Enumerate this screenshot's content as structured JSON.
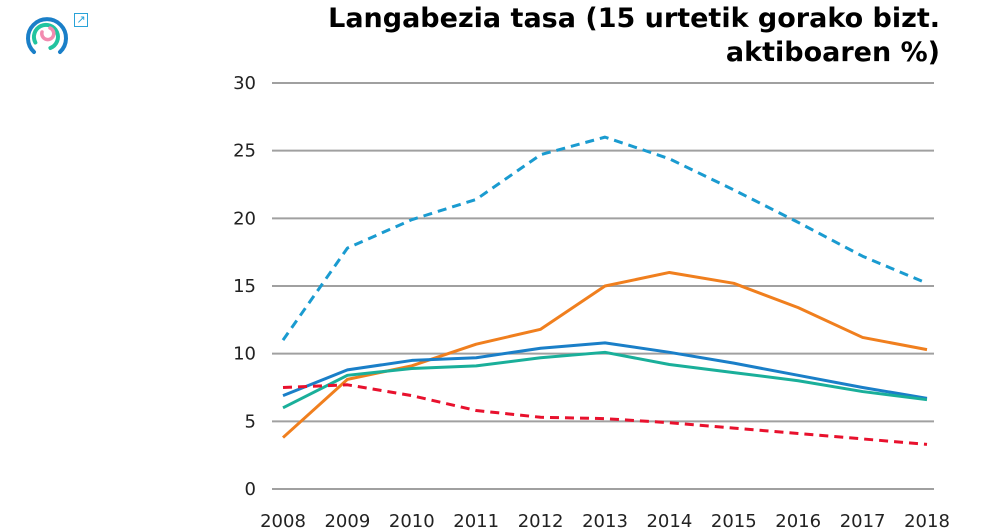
{
  "header": {
    "logo": "Eustat logo",
    "external_link_icon": "external-link-icon"
  },
  "chart_data": {
    "type": "line",
    "title": "Langabezia tasa (15 urtetik gorako bizt. aktiboaren %)",
    "title_lines": [
      "Langabezia tasa (15 urtetik gorako bizt.",
      "aktiboaren %)"
    ],
    "x": [
      2008,
      2009,
      2010,
      2011,
      2012,
      2013,
      2014,
      2015,
      2016,
      2017,
      2018
    ],
    "ylim": [
      0,
      30
    ],
    "yticks": [
      0,
      5,
      10,
      15,
      20,
      25,
      30
    ],
    "grid": true,
    "legend": "none",
    "series": [
      {
        "color": "#1a9bd0",
        "dash": true,
        "values": [
          11.0,
          17.8,
          19.9,
          21.4,
          24.7,
          26.0,
          24.4,
          22.1,
          19.7,
          17.2,
          15.2
        ]
      },
      {
        "color": "#f07f1e",
        "dash": false,
        "values": [
          3.8,
          8.1,
          9.1,
          10.7,
          11.8,
          15.0,
          16.0,
          15.2,
          13.4,
          11.2,
          10.3
        ]
      },
      {
        "color": "#1a7fc8",
        "dash": false,
        "values": [
          6.9,
          8.8,
          9.5,
          9.7,
          10.4,
          10.8,
          10.1,
          9.3,
          8.4,
          7.5,
          6.7
        ]
      },
      {
        "color": "#1aaf9a",
        "dash": false,
        "values": [
          6.0,
          8.4,
          8.9,
          9.1,
          9.7,
          10.1,
          9.2,
          8.6,
          8.0,
          7.2,
          6.6
        ]
      },
      {
        "color": "#e8112d",
        "dash": true,
        "values": [
          7.5,
          7.7,
          6.9,
          5.8,
          5.3,
          5.2,
          4.9,
          4.5,
          4.1,
          3.7,
          3.3
        ]
      }
    ]
  }
}
